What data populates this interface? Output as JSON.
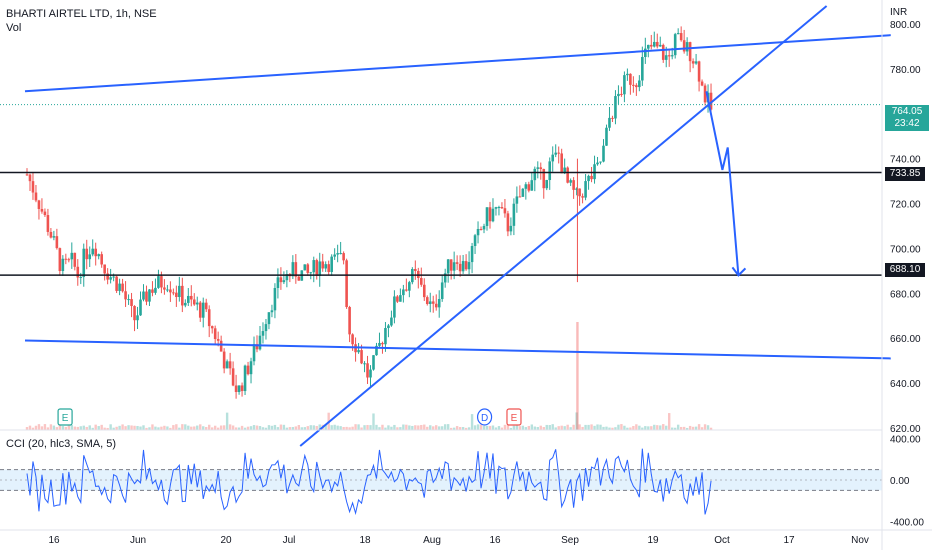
{
  "header": {
    "symbol_title": "BHARTI AIRTEL LTD, 1h, NSE",
    "volume_label": "Vol",
    "currency": "INR"
  },
  "cci_label": "CCI (20, hlc3, SMA, 5)",
  "price_tag": {
    "value": "764.05",
    "countdown": "23:42"
  },
  "level_tags": [
    "733.85",
    "688.10"
  ],
  "event_markers": [
    "E",
    "D",
    "E"
  ],
  "colors": {
    "up": "#26a69a",
    "down": "#ef5350",
    "trendline": "#2962ff",
    "cci_line": "#2962ff",
    "cci_band": "#e3f2fd",
    "last_price_bg": "#26a69a"
  },
  "chart_data": {
    "type": "candlestick",
    "x_tick_labels": [
      "16",
      "Jun",
      "20",
      "Jul",
      "18",
      "Aug",
      "16",
      "Sep",
      "19",
      "Oct",
      "17",
      "Nov"
    ],
    "y_tick_labels": [
      "800.00",
      "780.00",
      "760.00",
      "740.00",
      "720.00",
      "700.00",
      "680.00",
      "660.00",
      "640.00",
      "620.00"
    ],
    "y_range": [
      612,
      808
    ],
    "cci_tick_labels": [
      "400.00",
      "0.00",
      "-400.00"
    ],
    "cci_range": [
      -480,
      480
    ],
    "cci_bands": [
      100,
      -100
    ],
    "close_path": [
      [
        0,
        733
      ],
      [
        0.04,
        722
      ],
      [
        0.09,
        706
      ],
      [
        0.13,
        691
      ],
      [
        0.17,
        694
      ],
      [
        0.19,
        688
      ],
      [
        0.22,
        698
      ],
      [
        0.25,
        703
      ],
      [
        0.28,
        694
      ],
      [
        0.31,
        688
      ],
      [
        0.35,
        683
      ],
      [
        0.4,
        668
      ],
      [
        0.46,
        682
      ],
      [
        0.52,
        686
      ],
      [
        0.58,
        678
      ],
      [
        0.66,
        672
      ],
      [
        0.71,
        660
      ],
      [
        0.75,
        646
      ],
      [
        0.79,
        636
      ],
      [
        0.82,
        645
      ],
      [
        0.86,
        657
      ],
      [
        0.9,
        672
      ],
      [
        0.95,
        686
      ],
      [
        1.0,
        690
      ],
      [
        1.05,
        688
      ],
      [
        1.1,
        694
      ],
      [
        1.14,
        694
      ],
      [
        1.19,
        696
      ],
      [
        1.2,
        665
      ],
      [
        1.24,
        655
      ],
      [
        1.28,
        642
      ],
      [
        1.31,
        653
      ],
      [
        1.35,
        668
      ],
      [
        1.4,
        682
      ],
      [
        1.45,
        688
      ],
      [
        1.49,
        679
      ],
      [
        1.52,
        672
      ],
      [
        1.56,
        688
      ],
      [
        1.6,
        696
      ],
      [
        1.64,
        692
      ],
      [
        1.68,
        703
      ],
      [
        1.72,
        714
      ],
      [
        1.76,
        718
      ],
      [
        1.8,
        710
      ],
      [
        1.84,
        722
      ],
      [
        1.87,
        728
      ],
      [
        1.9,
        734
      ],
      [
        1.93,
        730
      ],
      [
        1.96,
        738
      ],
      [
        1.99,
        742
      ],
      [
        2.02,
        729
      ],
      [
        2.06,
        722
      ],
      [
        2.1,
        730
      ],
      [
        2.14,
        736
      ],
      [
        2.16,
        745
      ],
      [
        2.18,
        758
      ],
      [
        2.22,
        770
      ],
      [
        2.25,
        776
      ],
      [
        2.28,
        775
      ],
      [
        2.31,
        786
      ],
      [
        2.34,
        790
      ],
      [
        2.37,
        788
      ],
      [
        2.4,
        784
      ],
      [
        2.43,
        794
      ],
      [
        2.45,
        790
      ],
      [
        2.48,
        788
      ],
      [
        2.51,
        781
      ],
      [
        2.53,
        770
      ],
      [
        2.56,
        762
      ]
    ],
    "series": [
      {
        "name": "CCI",
        "kind": "oscillator"
      }
    ],
    "trendlines": [
      {
        "from": [
          0.0,
          770
        ],
        "to": [
          3.24,
          795
        ],
        "label": ""
      },
      {
        "from": [
          0.0,
          659
        ],
        "to": [
          3.24,
          651
        ],
        "label": ""
      },
      {
        "from": [
          1.03,
          612
        ],
        "to": [
          3.0,
          808
        ],
        "label": ""
      }
    ],
    "horizontal_levels": [
      733.85,
      688.1
    ],
    "projection_path": [
      [
        2.55,
        770
      ],
      [
        2.61,
        735
      ],
      [
        2.63,
        745
      ],
      [
        2.67,
        688
      ]
    ],
    "last_price": 764.05,
    "grid": false,
    "legend": "none"
  }
}
